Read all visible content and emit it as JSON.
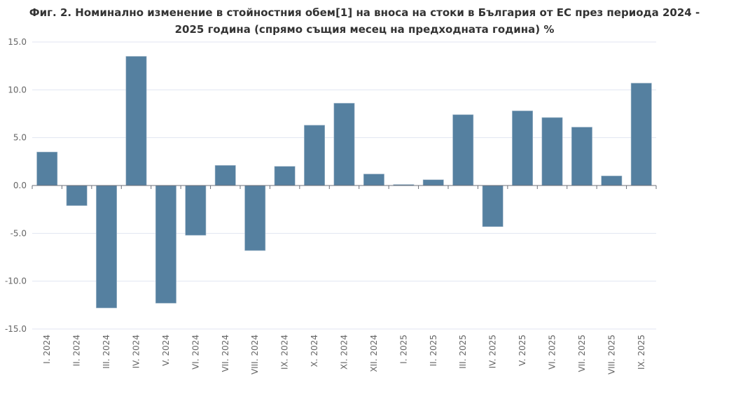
{
  "chart_data": {
    "type": "bar",
    "title": "Фиг. 2. Номинално изменение в стойностния обем[1] на вноса на стоки в България от ЕС през периода 2024 - 2025 година (спрямо същия месец на предходната година) %",
    "title_lines": [
      "Фиг. 2. Номинално изменение в стойностния обем[1] на вноса на стоки в България от ЕС през периода 2024 -",
      "2025 година (спрямо същия месец на предходната година) %"
    ],
    "categories": [
      "I. 2024",
      "II. 2024",
      "III. 2024",
      "IV. 2024",
      "V. 2024",
      "VI. 2024",
      "VII. 2024",
      "VIII. 2024",
      "IX. 2024",
      "X. 2024",
      "XI. 2024",
      "XII. 2024",
      "I. 2025",
      "II. 2025",
      "III. 2025",
      "IV. 2025",
      "V. 2025",
      "VI. 2025",
      "VII. 2025",
      "VIII. 2025",
      "IX. 2025"
    ],
    "values": [
      3.5,
      -2.1,
      -12.8,
      13.5,
      -12.3,
      -5.2,
      2.1,
      -6.8,
      2.0,
      6.3,
      8.6,
      1.2,
      0.1,
      0.6,
      7.4,
      -4.3,
      7.8,
      7.1,
      6.1,
      1.0,
      10.7
    ],
    "yticks": [
      "15.0",
      "10.0",
      "5.0",
      "0.0",
      "-5.0",
      "-10.0",
      "-15.0"
    ],
    "ylim": [
      -15,
      15
    ],
    "xlabel": "",
    "ylabel": "",
    "grid": true,
    "bar_color": "#5580a0"
  }
}
